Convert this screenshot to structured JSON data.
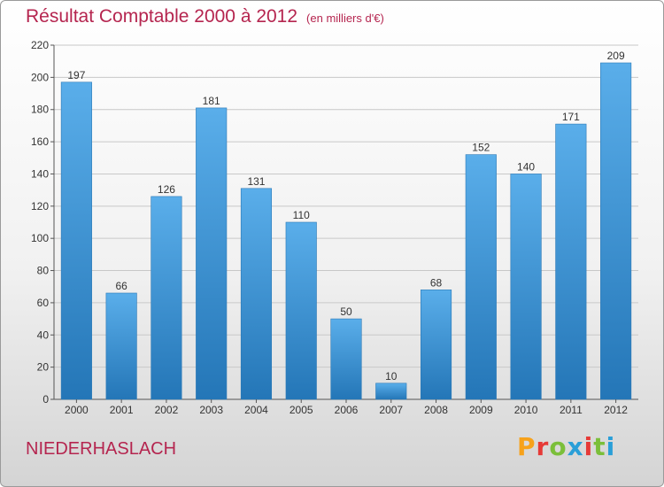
{
  "chart_data": {
    "type": "bar",
    "title": "Résultat Comptable 2000 à 2012",
    "subtitle": "(en milliers d'€)",
    "categories": [
      "2000",
      "2001",
      "2002",
      "2003",
      "2004",
      "2005",
      "2006",
      "2007",
      "2008",
      "2009",
      "2010",
      "2011",
      "2012"
    ],
    "values": [
      197,
      66,
      126,
      181,
      131,
      110,
      50,
      10,
      68,
      152,
      140,
      171,
      209
    ],
    "ylim": [
      0,
      220
    ],
    "yticks": [
      0,
      20,
      40,
      60,
      80,
      100,
      120,
      140,
      160,
      180,
      200,
      220
    ],
    "grid": true,
    "bar_color": "#3d93d6"
  },
  "footer": {
    "place": "NIEDERHASLACH",
    "brand": "Proxiti",
    "brand_colors": [
      "#f7a21b",
      "#e63a37",
      "#7bbf3a",
      "#2a9fd8",
      "#e63a37",
      "#7bbf3a",
      "#2a9fd8"
    ]
  }
}
